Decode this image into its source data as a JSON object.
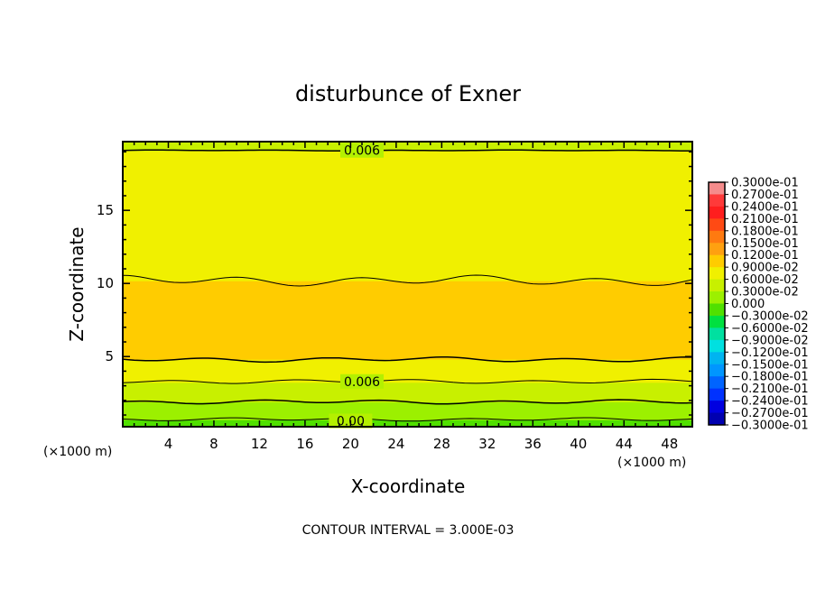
{
  "chart_data": {
    "type": "heatmap",
    "title": "disturbunce of Exner",
    "xlabel": "X-coordinate",
    "ylabel": "Z-coordinate",
    "x_unit": "(×1000 m)",
    "y_unit": "(×1000 m)",
    "xlim": [
      0,
      50
    ],
    "ylim": [
      0.2,
      19.7
    ],
    "xticks": [
      4,
      8,
      12,
      16,
      20,
      24,
      28,
      32,
      36,
      40,
      44,
      48
    ],
    "yticks": [
      5,
      10,
      15
    ],
    "footnote": "CONTOUR INTERVAL = 3.000E-03",
    "contour_interval": 0.003,
    "contour_labels": [
      {
        "text": "0.006",
        "x": 21,
        "z": 19.1
      },
      {
        "text": "0.006",
        "x": 21,
        "z": 3.3
      },
      {
        "text": "0.00",
        "x": 20,
        "z": 0.6
      }
    ],
    "contours": [
      {
        "z": 19.1,
        "amp": 0.02
      },
      {
        "z": 10.2,
        "amp": 0.25
      },
      {
        "z": 4.8,
        "amp": 0.12
      },
      {
        "z": 3.3,
        "amp": 0.1
      },
      {
        "z": 1.9,
        "amp": 0.1
      },
      {
        "z": 0.7,
        "amp": 0.08
      }
    ],
    "field_profile": [
      {
        "z": 0.2,
        "value": 0.0
      },
      {
        "z": 0.7,
        "value": 0.0
      },
      {
        "z": 1.2,
        "value": 0.0015
      },
      {
        "z": 1.9,
        "value": 0.003
      },
      {
        "z": 2.6,
        "value": 0.0045
      },
      {
        "z": 3.3,
        "value": 0.006
      },
      {
        "z": 4.0,
        "value": 0.0075
      },
      {
        "z": 4.8,
        "value": 0.009
      },
      {
        "z": 6.0,
        "value": 0.0099
      },
      {
        "z": 7.5,
        "value": 0.0105
      },
      {
        "z": 9.0,
        "value": 0.0099
      },
      {
        "z": 10.2,
        "value": 0.009
      },
      {
        "z": 12.0,
        "value": 0.0084
      },
      {
        "z": 14.0,
        "value": 0.0078
      },
      {
        "z": 16.0,
        "value": 0.0075
      },
      {
        "z": 18.0,
        "value": 0.0069
      },
      {
        "z": 19.1,
        "value": 0.006
      },
      {
        "z": 19.7,
        "value": 0.006
      }
    ],
    "colorbar": {
      "levels": [
        {
          "label": "0.3000e-01",
          "color": "#f58c8c"
        },
        {
          "label": "0.2700e-01",
          "color": "#ff3a3a"
        },
        {
          "label": "0.2400e-01",
          "color": "#ff1e1e"
        },
        {
          "label": "0.2100e-01",
          "color": "#ff4a14"
        },
        {
          "label": "0.1800e-01",
          "color": "#ff7a10"
        },
        {
          "label": "0.1500e-01",
          "color": "#ffa010"
        },
        {
          "label": "0.1200e-01",
          "color": "#ffcc00"
        },
        {
          "label": "0.9000e-02",
          "color": "#f0f000"
        },
        {
          "label": "0.6000e-02",
          "color": "#c8f000"
        },
        {
          "label": "0.3000e-02",
          "color": "#9cf000"
        },
        {
          "label": "0.000",
          "color": "#50e000"
        },
        {
          "label": "−0.3000e-02",
          "color": "#00e040"
        },
        {
          "label": "−0.6000e-02",
          "color": "#00e0a0"
        },
        {
          "label": "−0.9000e-02",
          "color": "#00e0e0"
        },
        {
          "label": "−0.1200e-01",
          "color": "#00b4f0"
        },
        {
          "label": "−0.1500e-01",
          "color": "#0096ff"
        },
        {
          "label": "−0.1800e-01",
          "color": "#0064ff"
        },
        {
          "label": "−0.2100e-01",
          "color": "#0032ff"
        },
        {
          "label": "−0.2400e-01",
          "color": "#0000e0"
        },
        {
          "label": "−0.2700e-01",
          "color": "#0000b0"
        },
        {
          "label": "−0.3000e-01",
          "color": "#5a0096"
        }
      ]
    }
  }
}
